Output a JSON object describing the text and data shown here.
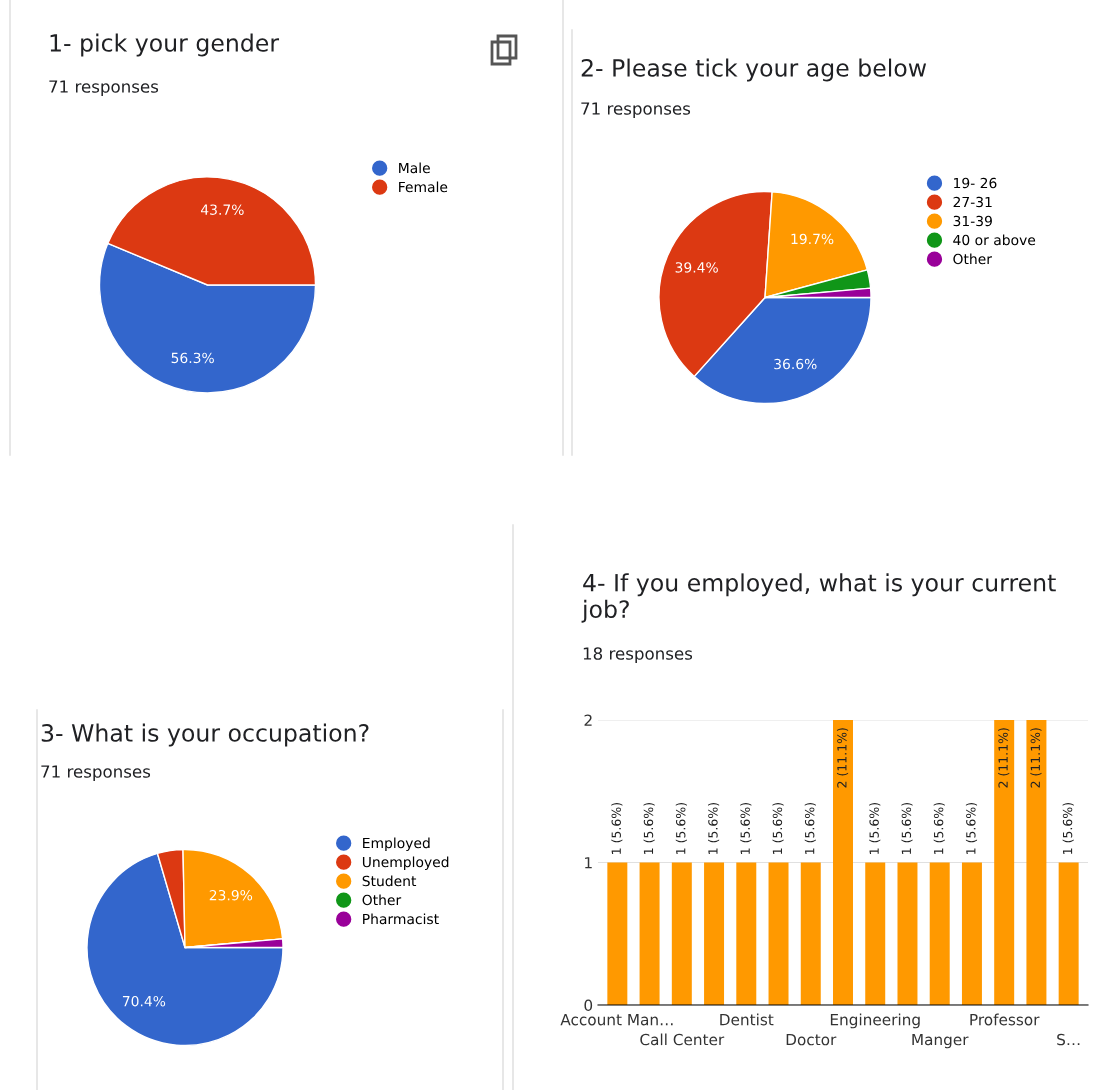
{
  "chart_data": [
    {
      "type": "pie",
      "title": "1- pick your gender",
      "subtitle": "71 responses",
      "categories": [
        "Male",
        "Female"
      ],
      "values": [
        56.3,
        43.7
      ],
      "colors": [
        "#3366cc",
        "#dc3912"
      ],
      "value_labels": [
        "56.3%",
        "43.7%"
      ],
      "legend": "right"
    },
    {
      "type": "pie",
      "title": "2- Please tick your age below",
      "subtitle": "71 responses",
      "categories": [
        "19- 26",
        "27-31",
        "31-39",
        "40 or above",
        "Other"
      ],
      "values": [
        36.6,
        39.4,
        19.7,
        2.8,
        1.4
      ],
      "colors": [
        "#3366cc",
        "#dc3912",
        "#ff9900",
        "#109618",
        "#990099"
      ],
      "value_labels": [
        "36.6%",
        "39.4%",
        "19.7%",
        null,
        null
      ],
      "legend": "right"
    },
    {
      "type": "pie",
      "title": "3- What is your occupation?",
      "subtitle": "71 responses",
      "categories": [
        "Employed",
        "Unemployed",
        "Student",
        "Other",
        "Pharmacist"
      ],
      "values": [
        70.4,
        4.2,
        23.9,
        0,
        1.4
      ],
      "colors": [
        "#3366cc",
        "#dc3912",
        "#ff9900",
        "#109618",
        "#990099"
      ],
      "value_labels": [
        "70.4%",
        null,
        "23.9%",
        null,
        null
      ],
      "legend": "right"
    },
    {
      "type": "bar",
      "title": "4- If you employed, what is your current job?",
      "subtitle": "18 responses",
      "categories": [
        "Account Man…",
        null,
        "Call Center",
        null,
        "Dentist",
        null,
        "Doctor",
        null,
        "Engineering",
        null,
        "Manger",
        null,
        "Professor",
        null,
        "S…"
      ],
      "values": [
        1,
        1,
        1,
        1,
        1,
        1,
        1,
        2,
        1,
        1,
        1,
        1,
        2,
        2,
        1
      ],
      "color": "#ff9900",
      "value_labels": [
        "1 (5.6%)",
        "1 (5.6%)",
        "1 (5.6%)",
        "1 (5.6%)",
        "1 (5.6%)",
        "1 (5.6%)",
        "1 (5.6%)",
        "2 (11.1%)",
        "1 (5.6%)",
        "1 (5.6%)",
        "1 (5.6%)",
        "1 (5.6%)",
        "2 (11.1%)",
        "2 (11.1%)",
        "1 (5.6%)"
      ],
      "ylim": [
        0,
        2
      ],
      "yticks": [
        0,
        1,
        2
      ],
      "grid": "y"
    }
  ]
}
